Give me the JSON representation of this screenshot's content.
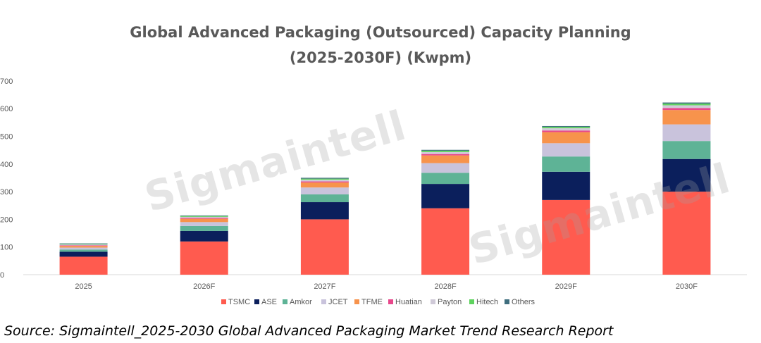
{
  "chart_data": {
    "type": "bar",
    "stacked": true,
    "title": "Global Advanced Packaging (Outsourced) Capacity Planning",
    "subtitle": "(2025-2030F)  (Kwpm)",
    "categories": [
      "2025",
      "2026F",
      "2027F",
      "2028F",
      "2029F",
      "2030F"
    ],
    "y_ticks": [
      "0",
      "100",
      "200",
      "300",
      "400",
      "500",
      "600",
      "700"
    ],
    "ylim": [
      0,
      700
    ],
    "grid": false,
    "legend_position": "bottom",
    "series": [
      {
        "name": "TSMC",
        "color": "#FF5B4F",
        "values": [
          65,
          120,
          200,
          240,
          270,
          300
        ]
      },
      {
        "name": "ASE",
        "color": "#0B1F5C",
        "values": [
          18,
          38,
          62,
          88,
          102,
          118
        ]
      },
      {
        "name": "Amkor",
        "color": "#5EB396",
        "values": [
          8,
          18,
          28,
          40,
          55,
          65
        ]
      },
      {
        "name": "JCET",
        "color": "#C9C3DC",
        "values": [
          7,
          14,
          25,
          35,
          48,
          60
        ]
      },
      {
        "name": "TFME",
        "color": "#F7934C",
        "values": [
          6,
          12,
          18,
          28,
          40,
          52
        ]
      },
      {
        "name": "Huatian",
        "color": "#E8478B",
        "values": [
          2,
          3,
          4,
          5,
          6,
          7
        ]
      },
      {
        "name": "Payton",
        "color": "#D0CAD8",
        "values": [
          3,
          4,
          6,
          7,
          8,
          10
        ]
      },
      {
        "name": "Hitech",
        "color": "#5FD35F",
        "values": [
          2,
          3,
          4,
          5,
          5,
          6
        ]
      },
      {
        "name": "Others",
        "color": "#3F6E7E",
        "values": [
          2,
          2,
          3,
          3,
          3,
          4
        ]
      }
    ]
  },
  "watermark": "Sigmaintell",
  "source": "Source: Sigmaintell_2025-2030 Global Advanced Packaging Market Trend Research Report"
}
